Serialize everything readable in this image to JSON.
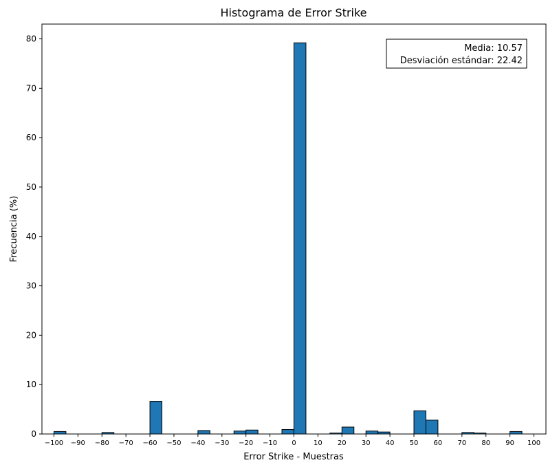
{
  "chart_data": {
    "type": "bar",
    "title": "Histograma de Error Strike",
    "xlabel": "Error Strike - Muestras",
    "ylabel": "Frecuencia (%)",
    "xlim": [
      -105,
      105
    ],
    "ylim": [
      0,
      83
    ],
    "xticks": [
      -100,
      -90,
      -80,
      -70,
      -60,
      -50,
      -40,
      -30,
      -20,
      -10,
      0,
      10,
      20,
      30,
      40,
      50,
      60,
      70,
      80,
      90,
      100
    ],
    "yticks": [
      0,
      10,
      20,
      30,
      40,
      50,
      60,
      70,
      80
    ],
    "bin_width": 5,
    "bars": [
      {
        "x0": -100,
        "x1": -95,
        "value": 0.5
      },
      {
        "x0": -80,
        "x1": -75,
        "value": 0.3
      },
      {
        "x0": -60,
        "x1": -55,
        "value": 6.6
      },
      {
        "x0": -40,
        "x1": -35,
        "value": 0.7
      },
      {
        "x0": -25,
        "x1": -20,
        "value": 0.6
      },
      {
        "x0": -20,
        "x1": -15,
        "value": 0.8
      },
      {
        "x0": -5,
        "x1": 0,
        "value": 0.9
      },
      {
        "x0": 0,
        "x1": 5,
        "value": 79.2
      },
      {
        "x0": 15,
        "x1": 20,
        "value": 0.2
      },
      {
        "x0": 20,
        "x1": 25,
        "value": 1.4
      },
      {
        "x0": 30,
        "x1": 35,
        "value": 0.6
      },
      {
        "x0": 35,
        "x1": 40,
        "value": 0.4
      },
      {
        "x0": 50,
        "x1": 55,
        "value": 4.7
      },
      {
        "x0": 55,
        "x1": 60,
        "value": 2.8
      },
      {
        "x0": 70,
        "x1": 75,
        "value": 0.3
      },
      {
        "x0": 75,
        "x1": 80,
        "value": 0.2
      },
      {
        "x0": 90,
        "x1": 95,
        "value": 0.5
      }
    ],
    "bar_color": "#1f77b4",
    "edge_color": "#000000",
    "annotation_lines": [
      "Media: 10.57",
      "Desviación estándar: 22.42"
    ],
    "annotation_position": "top-right",
    "grid": false
  }
}
